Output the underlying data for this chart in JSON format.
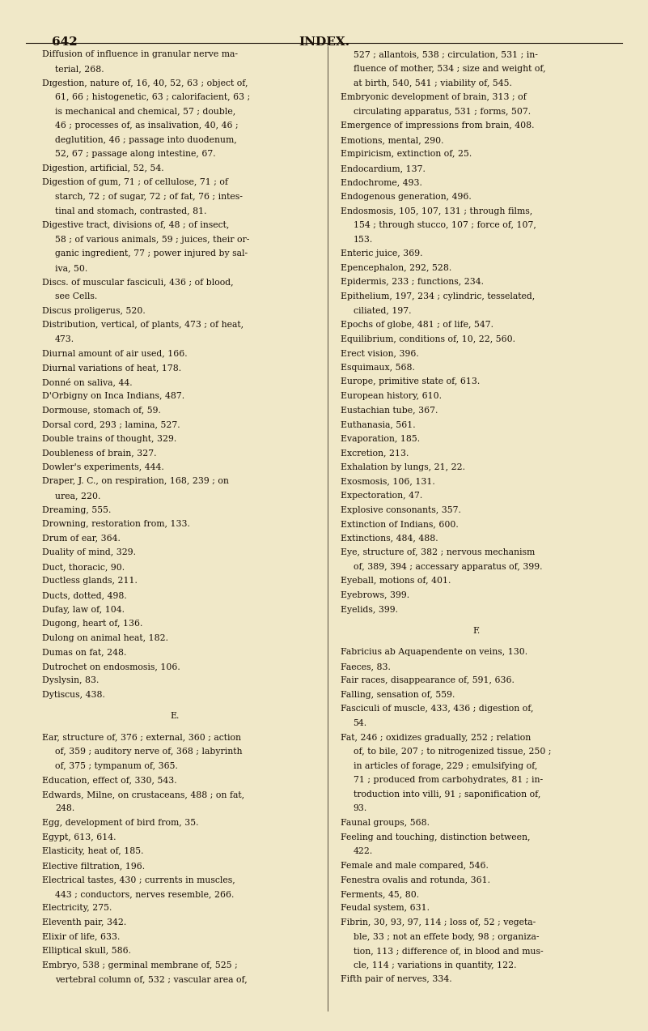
{
  "page_number": "642",
  "page_title": "INDEX.",
  "bg_color": "#f0e8c8",
  "text_color": "#1a1008",
  "figsize": [
    8.01,
    12.73
  ],
  "dpi": 100,
  "left_column": [
    [
      "Diffusion of influence in granular nerve ma-",
      false
    ],
    [
      "   terial, 268.",
      false
    ],
    [
      "Dɪgestion, nature of, 16, 40, 52, 63 ; object of,",
      true
    ],
    [
      "   61, 66 ; histogenetic, 63 ; calorifacient, 63 ;",
      false
    ],
    [
      "   is mechanical and chemical, 57 ; double,",
      false
    ],
    [
      "   46 ; processes of, as insalivation, 40, 46 ;",
      false
    ],
    [
      "   deglutition, 46 ; passage into duodenum,",
      false
    ],
    [
      "   52, 67 ; passage along intestine, 67.",
      false
    ],
    [
      "Digestion, artificial, 52, 54.",
      false
    ],
    [
      "Digestion of gum, 71 ; of cellulose, 71 ; of",
      false
    ],
    [
      "   starch, 72 ; of sugar, 72 ; of fat, 76 ; intes-",
      false
    ],
    [
      "   tinal and stomach, contrasted, 81.",
      false
    ],
    [
      "Digestive tract, divisions of, 48 ; of insect,",
      false
    ],
    [
      "   58 ; of various animals, 59 ; juices, their or-",
      false
    ],
    [
      "   ganic ingredient, 77 ; power injured by sal-",
      false
    ],
    [
      "   iva, 50.",
      false
    ],
    [
      "Discs. of muscular fasciculi, 436 ; of blood,",
      false
    ],
    [
      "   see Cells.",
      false
    ],
    [
      "Discus proligerus, 520.",
      false
    ],
    [
      "Distribution, vertical, of plants, 473 ; of heat,",
      false
    ],
    [
      "   473.",
      false
    ],
    [
      "Diurnal amount of air used, 166.",
      false
    ],
    [
      "Diurnal variations of heat, 178.",
      false
    ],
    [
      "Donné on saliva, 44.",
      false
    ],
    [
      "D'Orbigny on Inca Indians, 487.",
      false
    ],
    [
      "Dormouse, stomach of, 59.",
      false
    ],
    [
      "Dorsal cord, 293 ; lamina, 527.",
      false
    ],
    [
      "Double trains of thought, 329.",
      false
    ],
    [
      "Doubleness of brain, 327.",
      false
    ],
    [
      "Dowler's experiments, 444.",
      false
    ],
    [
      "Draper, J. C., on respiration, 168, 239 ; on",
      false
    ],
    [
      "   urea, 220.",
      false
    ],
    [
      "Dreaming, 555.",
      false
    ],
    [
      "Drowning, restoration from, 133.",
      false
    ],
    [
      "Drum of ear, 364.",
      false
    ],
    [
      "Duality of mind, 329.",
      false
    ],
    [
      "Duct, thoracic, 90.",
      false
    ],
    [
      "Ductless glands, 211.",
      false
    ],
    [
      "Ducts, dotted, 498.",
      false
    ],
    [
      "Dufay, law of, 104.",
      false
    ],
    [
      "Dugong, heart of, 136.",
      false
    ],
    [
      "Dulong on animal heat, 182.",
      false
    ],
    [
      "Dumas on fat, 248.",
      false
    ],
    [
      "Dutrochet on endosmosis, 106.",
      false
    ],
    [
      "Dyslysin, 83.",
      false
    ],
    [
      "Dytiscus, 438.",
      false
    ],
    [
      "",
      false
    ],
    [
      "E.",
      true
    ],
    [
      "",
      false
    ],
    [
      "Ear, structure of, 376 ; external, 360 ; action",
      false
    ],
    [
      "   of, 359 ; auditory nerve of, 368 ; labyrinth",
      false
    ],
    [
      "   of, 375 ; tympanum of, 365.",
      false
    ],
    [
      "Education, effect of, 330, 543.",
      false
    ],
    [
      "Edwards, Milne, on crustaceans, 488 ; on fat,",
      false
    ],
    [
      "   248.",
      false
    ],
    [
      "Egg, development of bird from, 35.",
      false
    ],
    [
      "Egypt, 613, 614.",
      false
    ],
    [
      "Elasticity, heat of, 185.",
      false
    ],
    [
      "Elective filtration, 196.",
      false
    ],
    [
      "Electrical tastes, 430 ; currents in muscles,",
      false
    ],
    [
      "   443 ; conductors, nerves resemble, 266.",
      false
    ],
    [
      "Electricity, 275.",
      false
    ],
    [
      "Eleventh pair, 342.",
      false
    ],
    [
      "Elixir of life, 633.",
      false
    ],
    [
      "Elliptical skull, 586.",
      false
    ],
    [
      "Embryo, 538 ; germinal membrane of, 525 ;",
      false
    ],
    [
      "   vertebral column of, 532 ; vascular area of,",
      false
    ]
  ],
  "right_column": [
    [
      "   527 ; allantois, 538 ; circulation, 531 ; in-",
      false
    ],
    [
      "   fluence of mother, 534 ; size and weight of,",
      false
    ],
    [
      "   at birth, 540, 541 ; viability of, 545.",
      false
    ],
    [
      "Embryonic development of brain, 313 ; of",
      false
    ],
    [
      "   circulating apparatus, 531 ; forms, 507.",
      false
    ],
    [
      "Emergence of impressions from brain, 408.",
      false
    ],
    [
      "Emotions, mental, 290.",
      false
    ],
    [
      "Empiricism, extinction of, 25.",
      false
    ],
    [
      "Endocardium, 137.",
      false
    ],
    [
      "Endochrome, 493.",
      false
    ],
    [
      "Endogenous generation, 496.",
      false
    ],
    [
      "Endosmosis, 105, 107, 131 ; through films,",
      false
    ],
    [
      "   154 ; through stucco, 107 ; force of, 107,",
      false
    ],
    [
      "   153.",
      false
    ],
    [
      "Enteric juice, 369.",
      false
    ],
    [
      "Epencephalon, 292, 528.",
      false
    ],
    [
      "Epidermis, 233 ; functions, 234.",
      false
    ],
    [
      "Epithelium, 197, 234 ; cylindric, tesselated,",
      false
    ],
    [
      "   ciliated, 197.",
      false
    ],
    [
      "Epochs of globe, 481 ; of life, 547.",
      false
    ],
    [
      "Equilibrium, conditions of, 10, 22, 560.",
      false
    ],
    [
      "Erect vision, 396.",
      false
    ],
    [
      "Esquimaux, 568.",
      false
    ],
    [
      "Europe, primitive state of, 613.",
      false
    ],
    [
      "European history, 610.",
      false
    ],
    [
      "Eustachian tube, 367.",
      false
    ],
    [
      "Euthanasia, 561.",
      false
    ],
    [
      "Evaporation, 185.",
      false
    ],
    [
      "Excretion, 213.",
      false
    ],
    [
      "Exhalation by lungs, 21, 22.",
      false
    ],
    [
      "Exosmosis, 106, 131.",
      false
    ],
    [
      "Expectoration, 47.",
      false
    ],
    [
      "Explosive consonants, 357.",
      false
    ],
    [
      "Extinction of Indians, 600.",
      false
    ],
    [
      "Extinctions, 484, 488.",
      false
    ],
    [
      "Eye, structure of, 382 ; nervous mechanism",
      false
    ],
    [
      "   of, 389, 394 ; accessary apparatus of, 399.",
      false
    ],
    [
      "Eyeball, motions of, 401.",
      false
    ],
    [
      "Eyebrows, 399.",
      false
    ],
    [
      "Eyelids, 399.",
      false
    ],
    [
      "",
      false
    ],
    [
      "F.",
      true
    ],
    [
      "",
      false
    ],
    [
      "Fabricius ab Aquapendente on veins, 130.",
      true
    ],
    [
      "Faeces, 83.",
      false
    ],
    [
      "Fair races, disappearance of, 591, 636.",
      false
    ],
    [
      "Falling, sensation of, 559.",
      false
    ],
    [
      "Fasciculi of muscle, 433, 436 ; digestion of,",
      false
    ],
    [
      "   54.",
      false
    ],
    [
      "Fat, 246 ; oxidizes gradually, 252 ; relation",
      true
    ],
    [
      "   of, to bile, 207 ; to nitrogenized tissue, 250 ;",
      false
    ],
    [
      "   in articles of forage, 229 ; emulsifying of,",
      false
    ],
    [
      "   71 ; produced from carbohydrates, 81 ; in-",
      false
    ],
    [
      "   troduction into villi, 91 ; saponification of,",
      false
    ],
    [
      "   93.",
      false
    ],
    [
      "Faunal groups, 568.",
      false
    ],
    [
      "Feeling and touching, distinction between,",
      false
    ],
    [
      "   422.",
      false
    ],
    [
      "Female and male compared, 546.",
      false
    ],
    [
      "Fenestra ovalis and rotunda, 361.",
      false
    ],
    [
      "Ferments, 45, 80.",
      false
    ],
    [
      "Feudal system, 631.",
      false
    ],
    [
      "Fibrin, 30, 93, 97, 114 ; loss of, 52 ; vegeta-",
      true
    ],
    [
      "   ble, 33 ; not an effete body, 98 ; organiza-",
      false
    ],
    [
      "   tion, 113 ; difference of, in blood and mus-",
      false
    ],
    [
      "   cle, 114 ; variations in quantity, 122.",
      false
    ],
    [
      "Fifth pair of nerves, 334.",
      false
    ]
  ]
}
